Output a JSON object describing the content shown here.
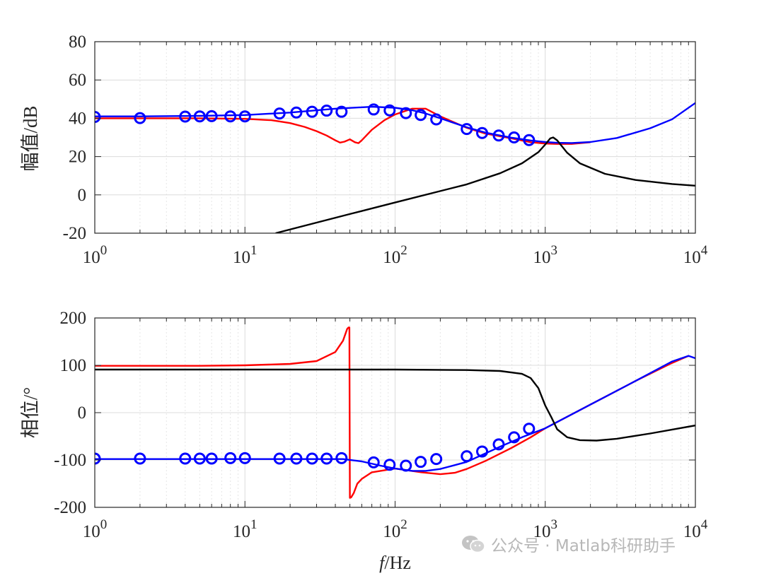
{
  "chart_data": [
    {
      "type": "line",
      "ylabel": "幅值/dB",
      "xlabel": "",
      "xscale": "log",
      "xlim": [
        1,
        10000
      ],
      "ylim": [
        -20,
        80
      ],
      "x_ticks": [
        "10^0",
        "10^1",
        "10^2",
        "10^3",
        "10^4"
      ],
      "y_ticks": [
        "-20",
        "0",
        "20",
        "40",
        "60",
        "80"
      ],
      "grid": "on",
      "legend": "none",
      "series": [
        {
          "color": "#ff0000",
          "style": "line",
          "x": [
            1,
            2,
            5,
            10,
            15,
            20,
            25,
            30,
            35,
            40,
            43,
            46,
            50,
            54,
            57,
            60,
            70,
            85,
            100,
            130,
            160,
            200,
            300,
            400,
            600,
            800,
            1000,
            1200,
            1500,
            2000
          ],
          "y": [
            40,
            40,
            40,
            39.7,
            39,
            37.5,
            35.5,
            33.3,
            31,
            28.5,
            27.3,
            27.8,
            29,
            27.5,
            27,
            28.5,
            34,
            39,
            42,
            45,
            45,
            41,
            35,
            32,
            29.5,
            27.5,
            26.8,
            26.6,
            26.6,
            27.5
          ]
        },
        {
          "color": "#0000ff",
          "style": "line",
          "x": [
            1,
            2,
            5,
            10,
            20,
            40,
            70,
            100,
            130,
            160,
            200,
            300,
            400,
            600,
            800,
            1000,
            1200,
            1500,
            2000,
            3000,
            5000,
            7000,
            10000
          ],
          "y": [
            41,
            41,
            41.3,
            41.7,
            43,
            45,
            46,
            45.5,
            44.2,
            42.5,
            40,
            35.3,
            32.5,
            29.8,
            28.4,
            27.6,
            27.2,
            27.1,
            27.6,
            29.7,
            34.8,
            39.5,
            48
          ]
        },
        {
          "color": "#000000",
          "style": "line",
          "x": [
            16,
            50,
            100,
            300,
            500,
            700,
            900,
            1000,
            1080,
            1130,
            1200,
            1400,
            1700,
            2500,
            4000,
            7000,
            10000
          ],
          "y": [
            -20,
            -10,
            -4,
            5.5,
            11.3,
            16.5,
            22.3,
            26.3,
            29.5,
            30,
            28.5,
            22,
            16.5,
            11,
            7.8,
            5.7,
            4.8
          ]
        },
        {
          "color": "#0000ff",
          "style": "markers",
          "marker": "circle",
          "x": [
            1,
            2,
            4,
            5,
            6,
            8,
            10,
            17,
            22,
            28,
            35,
            44,
            72,
            92,
            118,
            148,
            188,
            300,
            380,
            490,
            620,
            780
          ],
          "y": [
            40.7,
            40.1,
            40.9,
            41,
            41.1,
            41,
            41,
            42.5,
            43,
            43.4,
            44,
            43.4,
            44.6,
            44.1,
            42.7,
            41.7,
            39.4,
            34.4,
            32.3,
            31,
            30,
            28.6
          ]
        }
      ]
    },
    {
      "type": "line",
      "ylabel": "相位/°",
      "xlabel": "f/Hz",
      "xscale": "log",
      "xlim": [
        1,
        10000
      ],
      "ylim": [
        -200,
        200
      ],
      "x_ticks": [
        "10^0",
        "10^1",
        "10^2",
        "10^3",
        "10^4"
      ],
      "y_ticks": [
        "-200",
        "-100",
        "0",
        "100",
        "200"
      ],
      "grid": "on",
      "legend": "none",
      "series": [
        {
          "color": "#ff0000",
          "style": "line",
          "x": [
            1,
            5,
            10,
            20,
            30,
            40,
            45,
            48,
            49,
            49.5,
            49.6,
            50,
            51,
            53,
            56,
            60,
            70,
            100,
            150,
            200,
            250,
            300,
            400,
            600,
            800,
            1000,
            2000,
            4000,
            7000,
            9000
          ],
          "y": [
            99,
            99,
            100,
            103,
            109,
            128,
            152,
            177,
            180,
            180,
            180,
            -180,
            -179,
            -170,
            -150,
            -140,
            -126,
            -118,
            -126,
            -130,
            -127,
            -119,
            -102,
            -74,
            -52,
            -33,
            17,
            67,
            105,
            120
          ]
        },
        {
          "color": "#0000ff",
          "style": "line",
          "x": [
            1,
            10,
            30,
            45,
            60,
            80,
            100,
            130,
            160,
            200,
            300,
            500,
            700,
            1000,
            2000,
            4000,
            7000,
            9000,
            10000
          ],
          "y": [
            -98,
            -98,
            -98,
            -98,
            -103,
            -112,
            -118,
            -123,
            -123,
            -119,
            -104,
            -72,
            -52,
            -33,
            17,
            67,
            108,
            120,
            115
          ]
        },
        {
          "color": "#000000",
          "style": "line",
          "x": [
            1,
            10,
            100,
            300,
            500,
            700,
            800,
            900,
            1000,
            1100,
            1200,
            1400,
            1700,
            2200,
            3000,
            5000,
            10000
          ],
          "y": [
            91,
            91,
            91,
            90,
            88,
            82,
            73,
            52,
            15,
            -10,
            -35,
            -52,
            -58,
            -59,
            -55,
            -44,
            -27
          ]
        },
        {
          "color": "#0000ff",
          "style": "markers",
          "marker": "circle",
          "x": [
            1,
            2,
            4,
            5,
            6,
            8,
            10,
            17,
            22,
            28,
            35,
            44,
            72,
            92,
            118,
            148,
            188,
            300,
            380,
            490,
            620,
            780
          ],
          "y": [
            -97,
            -97,
            -97,
            -97,
            -97,
            -96,
            -96,
            -97,
            -97,
            -97,
            -97,
            -96,
            -105,
            -110,
            -112,
            -104,
            -98,
            -92,
            -82,
            -67,
            -52,
            -34
          ]
        }
      ]
    }
  ],
  "watermark": {
    "text": "公众号 · Matlab科研助手",
    "icon": "wechat-icon"
  }
}
